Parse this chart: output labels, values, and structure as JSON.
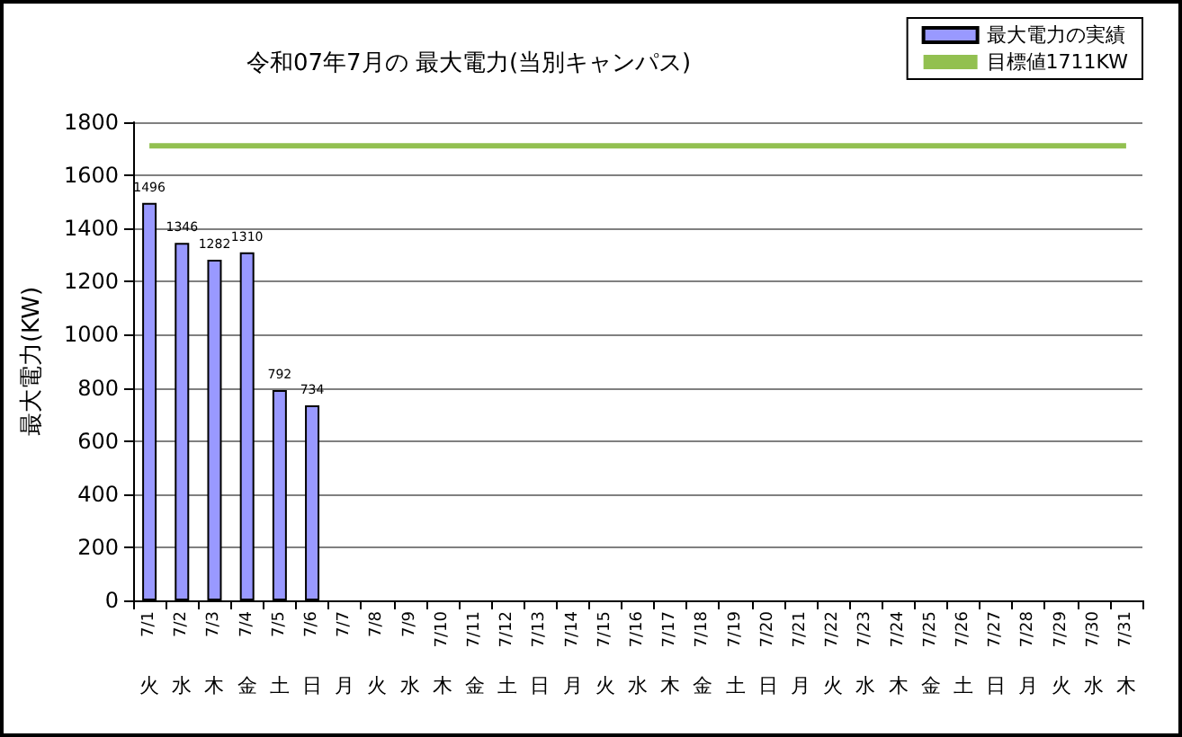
{
  "chart_data": {
    "type": "bar",
    "title": "令和07年7月の 最大電力(当別キャンパス)",
    "ylabel": "最大電力(KW)",
    "categories": [
      "7/1\n火",
      "7/2\n水",
      "7/3\n木",
      "7/4\n金",
      "7/5\n土",
      "7/6\n日",
      "7/7\n月",
      "7/8\n火",
      "7/9\n水",
      "7/10\n木",
      "7/11\n金",
      "7/12\n土",
      "7/13\n日",
      "7/14\n月",
      "7/15\n火",
      "7/16\n水",
      "7/17\n木",
      "7/18\n金",
      "7/19\n土",
      "7/20\n日",
      "7/21\n月",
      "7/22\n火",
      "7/23\n水",
      "7/24\n木",
      "7/25\n金",
      "7/26\n土",
      "7/27\n日",
      "7/28\n月",
      "7/29\n火",
      "7/30\n水",
      "7/31\n木"
    ],
    "series": [
      {
        "name": "最大電力の実績",
        "color": "#9999ff",
        "values": [
          1496,
          1346,
          1282,
          1310,
          792,
          734,
          null,
          null,
          null,
          null,
          null,
          null,
          null,
          null,
          null,
          null,
          null,
          null,
          null,
          null,
          null,
          null,
          null,
          null,
          null,
          null,
          null,
          null,
          null,
          null,
          null
        ],
        "value_labels": [
          "1496",
          "1346",
          "1282",
          "1310",
          "792",
          "734",
          null,
          null,
          null,
          null,
          null,
          null,
          null,
          null,
          null,
          null,
          null,
          null,
          null,
          null,
          null,
          null,
          null,
          null,
          null,
          null,
          null,
          null,
          null,
          null,
          null
        ]
      },
      {
        "name": "目標値1711KW",
        "type": "line",
        "color": "#92c050",
        "marker": "none",
        "values": [
          1711,
          1711,
          1711,
          1711,
          1711,
          1711,
          1711,
          1711,
          1711,
          1711,
          1711,
          1711,
          1711,
          1711,
          1711,
          1711,
          1711,
          1711,
          1711,
          1711,
          1711,
          1711,
          1711,
          1711,
          1711,
          1711,
          1711,
          1711,
          1711,
          1711,
          1711
        ]
      }
    ],
    "ylim": [
      0,
      1800
    ],
    "yticks": [
      0,
      200,
      400,
      600,
      800,
      1000,
      1200,
      1400,
      1600,
      1800
    ],
    "grid": "y",
    "legend": "top right"
  }
}
